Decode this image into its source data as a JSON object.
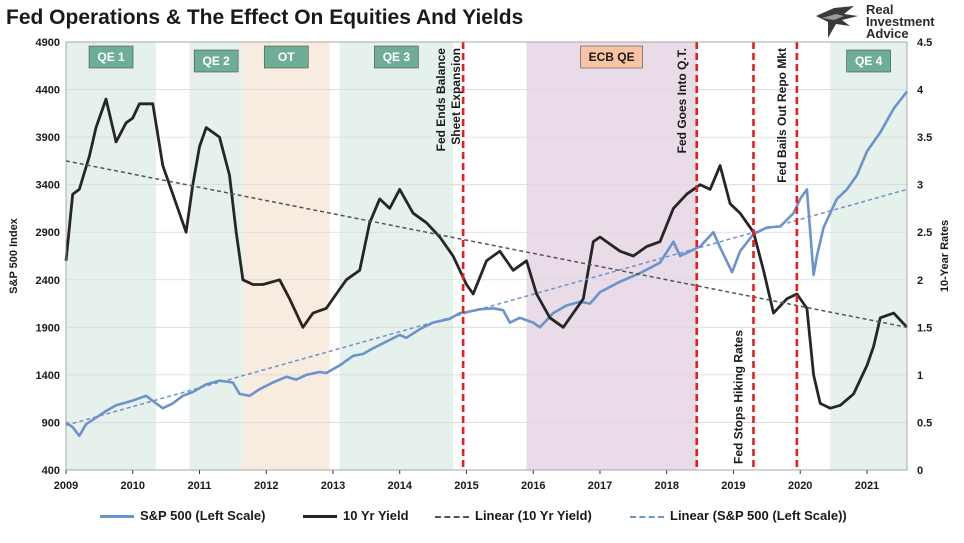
{
  "title": "Fed Operations & The Effect On Equities And Yields",
  "logo": {
    "line1": "Real",
    "line2": "Investment",
    "line3": "Advice",
    "icon": "eagle-icon"
  },
  "colors": {
    "sp500": "#6b93cc",
    "yield": "#262626",
    "trend_yield": "#555555",
    "trend_sp": "#6b93cc",
    "event_line": "#e3201b",
    "qe_shade": "#e6f1ec",
    "ot_shade": "#f7ecdf",
    "ecb_shade": "#e9dbe7",
    "qe_label_bg": "#6fae96",
    "ecb_label_bg": "#f8c4a4"
  },
  "chart_data": {
    "type": "line",
    "title": "Fed Operations & The Effect On Equities And Yields",
    "xlim": [
      2009,
      2021.6
    ],
    "x_ticks": [
      "2009",
      "2010",
      "2011",
      "2012",
      "2013",
      "2014",
      "2015",
      "2016",
      "2017",
      "2018",
      "2019",
      "2020",
      "2021"
    ],
    "y_left": {
      "label": "S&P 500 Index",
      "range": [
        400,
        4900
      ],
      "ticks": [
        "400",
        "900",
        "1400",
        "1900",
        "2400",
        "2900",
        "3400",
        "3900",
        "4400",
        "4900"
      ]
    },
    "y_right": {
      "label": "10-Year Rates",
      "range": [
        0,
        4.5
      ],
      "ticks": [
        "0",
        "0.5",
        "1",
        "1.5",
        "2",
        "2.5",
        "3",
        "3.5",
        "4",
        "4.5"
      ]
    },
    "shaded_periods": [
      {
        "label": "QE 1",
        "start": 2009.0,
        "end": 2010.35,
        "kind": "qe"
      },
      {
        "label": "QE 2",
        "start": 2010.85,
        "end": 2011.65,
        "kind": "qe"
      },
      {
        "label": "OT",
        "start": 2011.65,
        "end": 2012.95,
        "kind": "ot"
      },
      {
        "label": "QE 3",
        "start": 2013.1,
        "end": 2014.8,
        "kind": "qe"
      },
      {
        "label": "ECB QE",
        "start": 2015.9,
        "end": 2018.45,
        "kind": "ecb"
      },
      {
        "label": "QE 4",
        "start": 2020.45,
        "end": 2021.6,
        "kind": "qe"
      }
    ],
    "events": [
      {
        "label": "Fed Ends Balance\nSheet Expansion",
        "x": 2014.95,
        "label_pos": "top"
      },
      {
        "label": "Fed Goes Into Q.T.",
        "x": 2018.45,
        "label_pos": "top"
      },
      {
        "label": "Fed Stops Hiking Rates",
        "x": 2019.3,
        "label_pos": "bottom"
      },
      {
        "label": "Fed Bails Out Repo Mkt",
        "x": 2019.95,
        "label_pos": "top"
      }
    ],
    "series": [
      {
        "name": "S&P 500 (Left Scale)",
        "axis": "left",
        "x": [
          2009.0,
          2009.1,
          2009.2,
          2009.3,
          2009.45,
          2009.6,
          2009.75,
          2009.9,
          2010.0,
          2010.2,
          2010.35,
          2010.45,
          2010.6,
          2010.75,
          2010.9,
          2011.1,
          2011.3,
          2011.5,
          2011.6,
          2011.75,
          2011.9,
          2012.1,
          2012.3,
          2012.45,
          2012.6,
          2012.8,
          2012.9,
          2013.1,
          2013.3,
          2013.45,
          2013.6,
          2013.8,
          2014.0,
          2014.1,
          2014.3,
          2014.5,
          2014.75,
          2014.9,
          2015.0,
          2015.2,
          2015.4,
          2015.55,
          2015.65,
          2015.8,
          2016.0,
          2016.1,
          2016.3,
          2016.5,
          2016.7,
          2016.85,
          2017.0,
          2017.3,
          2017.6,
          2017.9,
          2018.1,
          2018.2,
          2018.35,
          2018.5,
          2018.7,
          2018.8,
          2018.98,
          2019.1,
          2019.3,
          2019.5,
          2019.7,
          2019.9,
          2020.0,
          2020.1,
          2020.2,
          2020.25,
          2020.35,
          2020.45,
          2020.55,
          2020.7,
          2020.85,
          2021.0,
          2021.2,
          2021.4,
          2021.6
        ],
        "values": [
          900,
          850,
          760,
          880,
          950,
          1020,
          1080,
          1110,
          1130,
          1180,
          1100,
          1050,
          1100,
          1180,
          1220,
          1300,
          1340,
          1320,
          1200,
          1180,
          1250,
          1320,
          1380,
          1350,
          1400,
          1430,
          1420,
          1500,
          1600,
          1620,
          1680,
          1750,
          1820,
          1790,
          1880,
          1950,
          1990,
          2050,
          2060,
          2090,
          2100,
          2080,
          1950,
          2000,
          1950,
          1900,
          2050,
          2130,
          2170,
          2150,
          2270,
          2380,
          2470,
          2580,
          2800,
          2650,
          2700,
          2750,
          2900,
          2740,
          2480,
          2700,
          2880,
          2950,
          2960,
          3100,
          3250,
          3350,
          2450,
          2650,
          2950,
          3100,
          3250,
          3350,
          3500,
          3750,
          3950,
          4200,
          4380
        ]
      },
      {
        "name": "10 Yr Yield",
        "axis": "right",
        "x": [
          2009.0,
          2009.1,
          2009.2,
          2009.35,
          2009.45,
          2009.6,
          2009.75,
          2009.9,
          2010.0,
          2010.1,
          2010.3,
          2010.45,
          2010.6,
          2010.75,
          2010.8,
          2010.9,
          2011.0,
          2011.1,
          2011.3,
          2011.45,
          2011.55,
          2011.65,
          2011.8,
          2011.95,
          2012.2,
          2012.35,
          2012.55,
          2012.7,
          2012.9,
          2013.05,
          2013.2,
          2013.4,
          2013.55,
          2013.7,
          2013.85,
          2014.0,
          2014.2,
          2014.4,
          2014.6,
          2014.8,
          2015.0,
          2015.1,
          2015.3,
          2015.5,
          2015.7,
          2015.9,
          2016.05,
          2016.25,
          2016.45,
          2016.55,
          2016.75,
          2016.9,
          2017.0,
          2017.3,
          2017.5,
          2017.7,
          2017.9,
          2018.1,
          2018.3,
          2018.5,
          2018.65,
          2018.8,
          2018.95,
          2019.1,
          2019.3,
          2019.45,
          2019.6,
          2019.8,
          2019.95,
          2020.1,
          2020.2,
          2020.3,
          2020.45,
          2020.6,
          2020.8,
          2021.0,
          2021.1,
          2021.2,
          2021.4,
          2021.6
        ],
        "values": [
          2.2,
          2.9,
          2.95,
          3.3,
          3.6,
          3.9,
          3.45,
          3.65,
          3.7,
          3.85,
          3.85,
          3.2,
          2.9,
          2.6,
          2.5,
          3.0,
          3.4,
          3.6,
          3.5,
          3.1,
          2.5,
          2.0,
          1.95,
          1.95,
          2.0,
          1.8,
          1.5,
          1.65,
          1.7,
          1.85,
          2.0,
          2.1,
          2.6,
          2.85,
          2.75,
          2.95,
          2.7,
          2.6,
          2.45,
          2.25,
          1.95,
          1.85,
          2.2,
          2.3,
          2.1,
          2.2,
          1.85,
          1.6,
          1.5,
          1.6,
          1.8,
          2.4,
          2.45,
          2.3,
          2.25,
          2.35,
          2.4,
          2.75,
          2.9,
          3.0,
          2.95,
          3.2,
          2.8,
          2.7,
          2.5,
          2.1,
          1.65,
          1.8,
          1.85,
          1.7,
          1.0,
          0.7,
          0.65,
          0.68,
          0.8,
          1.1,
          1.3,
          1.6,
          1.65,
          1.5
        ]
      },
      {
        "name": "Linear (10 Yr Yield)",
        "axis": "right",
        "trend": true,
        "x": [
          2009.0,
          2021.6
        ],
        "values": [
          3.25,
          1.5
        ]
      },
      {
        "name": "Linear (S&P 500 (Left Scale))",
        "axis": "left",
        "trend": true,
        "x": [
          2009.0,
          2021.6
        ],
        "values": [
          870,
          3350
        ]
      }
    ]
  },
  "legend": [
    "S&P 500 (Left Scale)",
    "10 Yr Yield",
    "Linear (10 Yr Yield)",
    "Linear (S&P 500 (Left Scale))"
  ]
}
